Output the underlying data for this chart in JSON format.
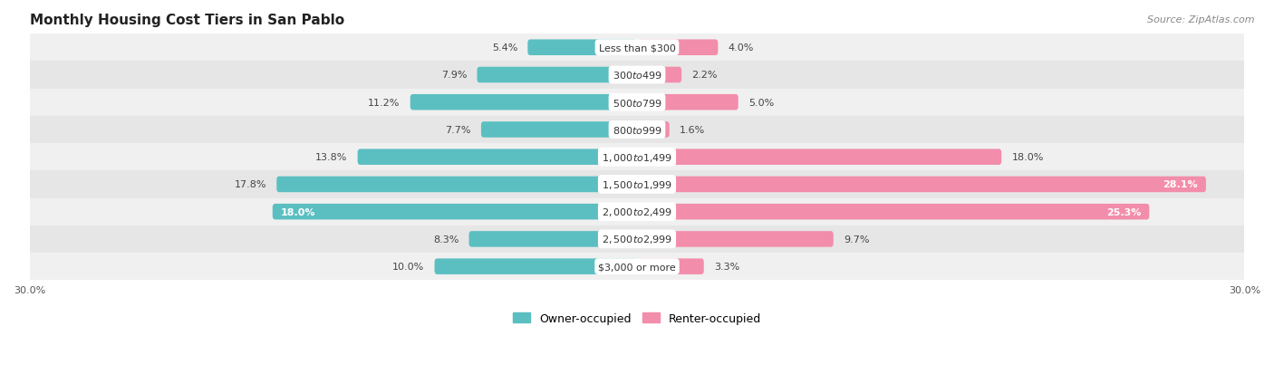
{
  "title": "Monthly Housing Cost Tiers in San Pablo",
  "source": "Source: ZipAtlas.com",
  "categories": [
    "Less than $300",
    "$300 to $499",
    "$500 to $799",
    "$800 to $999",
    "$1,000 to $1,499",
    "$1,500 to $1,999",
    "$2,000 to $2,499",
    "$2,500 to $2,999",
    "$3,000 or more"
  ],
  "owner_values": [
    5.4,
    7.9,
    11.2,
    7.7,
    13.8,
    17.8,
    18.0,
    8.3,
    10.0
  ],
  "renter_values": [
    4.0,
    2.2,
    5.0,
    1.6,
    18.0,
    28.1,
    25.3,
    9.7,
    3.3
  ],
  "owner_color": "#5BBFC1",
  "renter_color": "#F28DAB",
  "row_bg_even": "#F0F0F0",
  "row_bg_odd": "#E6E6E6",
  "axis_limit": 30.0,
  "label_fontsize": 8.0,
  "title_fontsize": 11,
  "category_fontsize": 8.0,
  "legend_fontsize": 9,
  "source_fontsize": 8
}
